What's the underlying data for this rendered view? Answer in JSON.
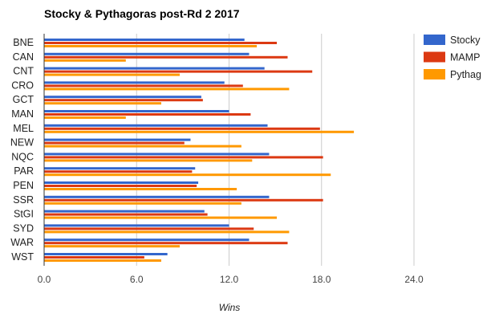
{
  "chart_data": {
    "type": "bar",
    "orientation": "horizontal",
    "title": "Stocky & Pythagoras post-Rd 2 2017",
    "xlabel": "Wins",
    "ylabel": "",
    "xlim": [
      0,
      24
    ],
    "xticks": [
      "0.0",
      "6.0",
      "12.0",
      "18.0",
      "24.0"
    ],
    "grid": true,
    "legend": "right",
    "categories": [
      "BNE",
      "CAN",
      "CNT",
      "CRO",
      "GCT",
      "MAN",
      "MEL",
      "NEW",
      "NQC",
      "PAR",
      "PEN",
      "SSR",
      "StGI",
      "SYD",
      "WAR",
      "WST"
    ],
    "series": [
      {
        "name": "Stocky",
        "color": "#3366cc",
        "values": [
          13.0,
          13.3,
          14.3,
          11.7,
          10.2,
          12.0,
          14.5,
          9.5,
          14.6,
          9.8,
          10.0,
          14.6,
          10.4,
          12.0,
          13.3,
          8.0
        ]
      },
      {
        "name": "MAMP",
        "color": "#dc3912",
        "values": [
          15.1,
          15.8,
          17.4,
          12.9,
          10.3,
          13.4,
          17.9,
          9.1,
          18.1,
          9.6,
          9.9,
          18.1,
          10.6,
          13.6,
          15.8,
          6.5
        ]
      },
      {
        "name": "Pythag",
        "color": "#ff9900",
        "values": [
          13.8,
          5.3,
          8.8,
          15.9,
          7.6,
          5.3,
          20.1,
          12.8,
          13.5,
          18.6,
          12.5,
          12.8,
          15.1,
          15.9,
          8.8,
          7.6
        ]
      }
    ]
  }
}
